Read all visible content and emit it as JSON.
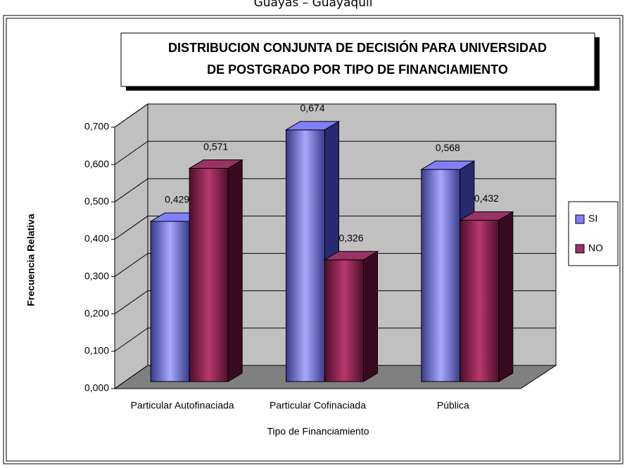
{
  "caption": "Guayas – Guayaquil",
  "chart_data": {
    "type": "bar3d",
    "title": [
      "DISTRIBUCION CONJUNTA DE DECISIÓN PARA UNIVERSIDAD",
      "DE POSTGRADO POR TIPO DE FINANCIAMIENTO"
    ],
    "x_label": "Tipo de Financiamiento",
    "y_label": "Frecuencia Relativa",
    "categories": [
      "Particular Autofinaciada",
      "Particular Cofinaciada",
      "Pública"
    ],
    "series": [
      {
        "name": "SI",
        "color": "#8080ff",
        "values": [
          0.429,
          0.674,
          0.568
        ],
        "value_labels": [
          "0,429",
          "0,674",
          "0,568"
        ]
      },
      {
        "name": "NO",
        "color": "#993366",
        "values": [
          0.571,
          0.326,
          0.432
        ],
        "value_labels": [
          "0,571",
          "0,326",
          "0,432"
        ]
      }
    ],
    "ylim": [
      0,
      0.7
    ],
    "yticks": [
      {
        "value": 0,
        "label": "0,000"
      },
      {
        "value": 0.1,
        "label": "0,100"
      },
      {
        "value": 0.2,
        "label": "0,200"
      },
      {
        "value": 0.3,
        "label": "0,300"
      },
      {
        "value": 0.4,
        "label": "0,400"
      },
      {
        "value": 0.5,
        "label": "0,500"
      },
      {
        "value": 0.6,
        "label": "0,600"
      },
      {
        "value": 0.7,
        "label": "0,700"
      }
    ],
    "grid": true,
    "legend": "right"
  }
}
